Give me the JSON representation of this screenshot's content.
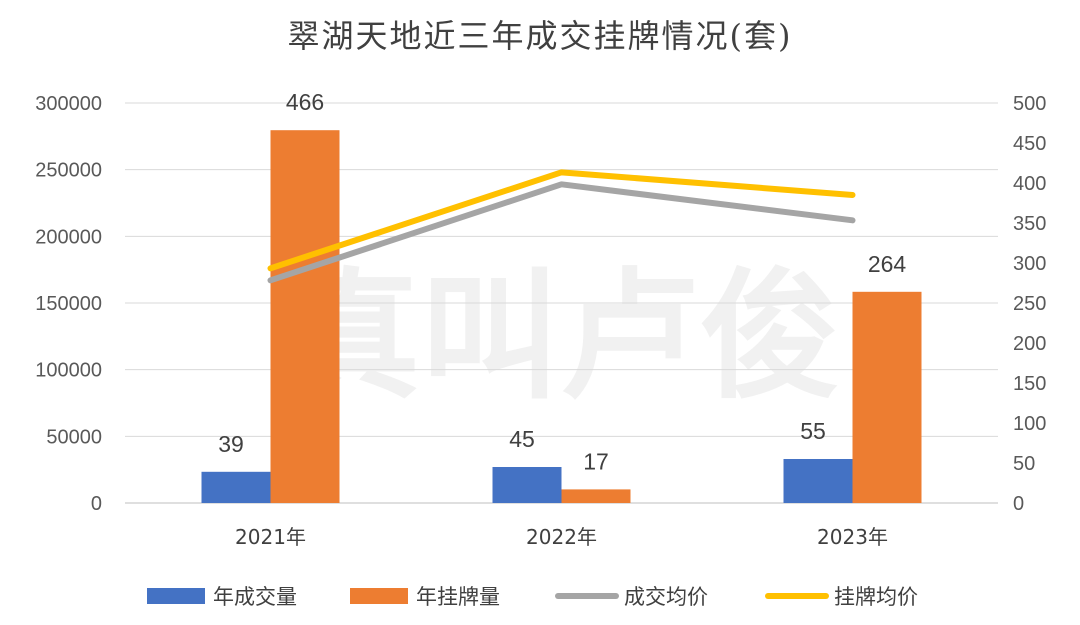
{
  "chart_data": {
    "type": "bar",
    "title": "翠湖天地近三年成交挂牌情况(套)",
    "categories": [
      "2021年",
      "2022年",
      "2023年"
    ],
    "y_left": {
      "ylim": [
        0,
        300000
      ],
      "ticks": [
        "0",
        "50000",
        "100000",
        "150000",
        "200000",
        "250000",
        "300000"
      ]
    },
    "y_right": {
      "ylim": [
        0,
        500
      ],
      "ticks": [
        "0",
        "50",
        "100",
        "150",
        "200",
        "250",
        "300",
        "350",
        "400",
        "450",
        "500"
      ]
    },
    "series": [
      {
        "name": "年成交量",
        "kind": "bar",
        "axis": "right",
        "color": "#4472c4",
        "values": [
          39,
          45,
          55
        ],
        "labels": [
          "39",
          "45",
          "55"
        ]
      },
      {
        "name": "年挂牌量",
        "kind": "bar",
        "axis": "right",
        "color": "#ed7d31",
        "values": [
          466,
          17,
          264
        ],
        "labels": [
          "466",
          "17",
          "264"
        ]
      },
      {
        "name": "成交均价",
        "kind": "line",
        "axis": "left",
        "color": "#a5a5a5",
        "values": [
          167000,
          239000,
          212000
        ]
      },
      {
        "name": "挂牌均价",
        "kind": "line",
        "axis": "left",
        "color": "#ffc000",
        "values": [
          176000,
          248000,
          231000
        ]
      }
    ],
    "grid": true,
    "legend_position": "bottom",
    "watermark": "真叫卢俊"
  }
}
